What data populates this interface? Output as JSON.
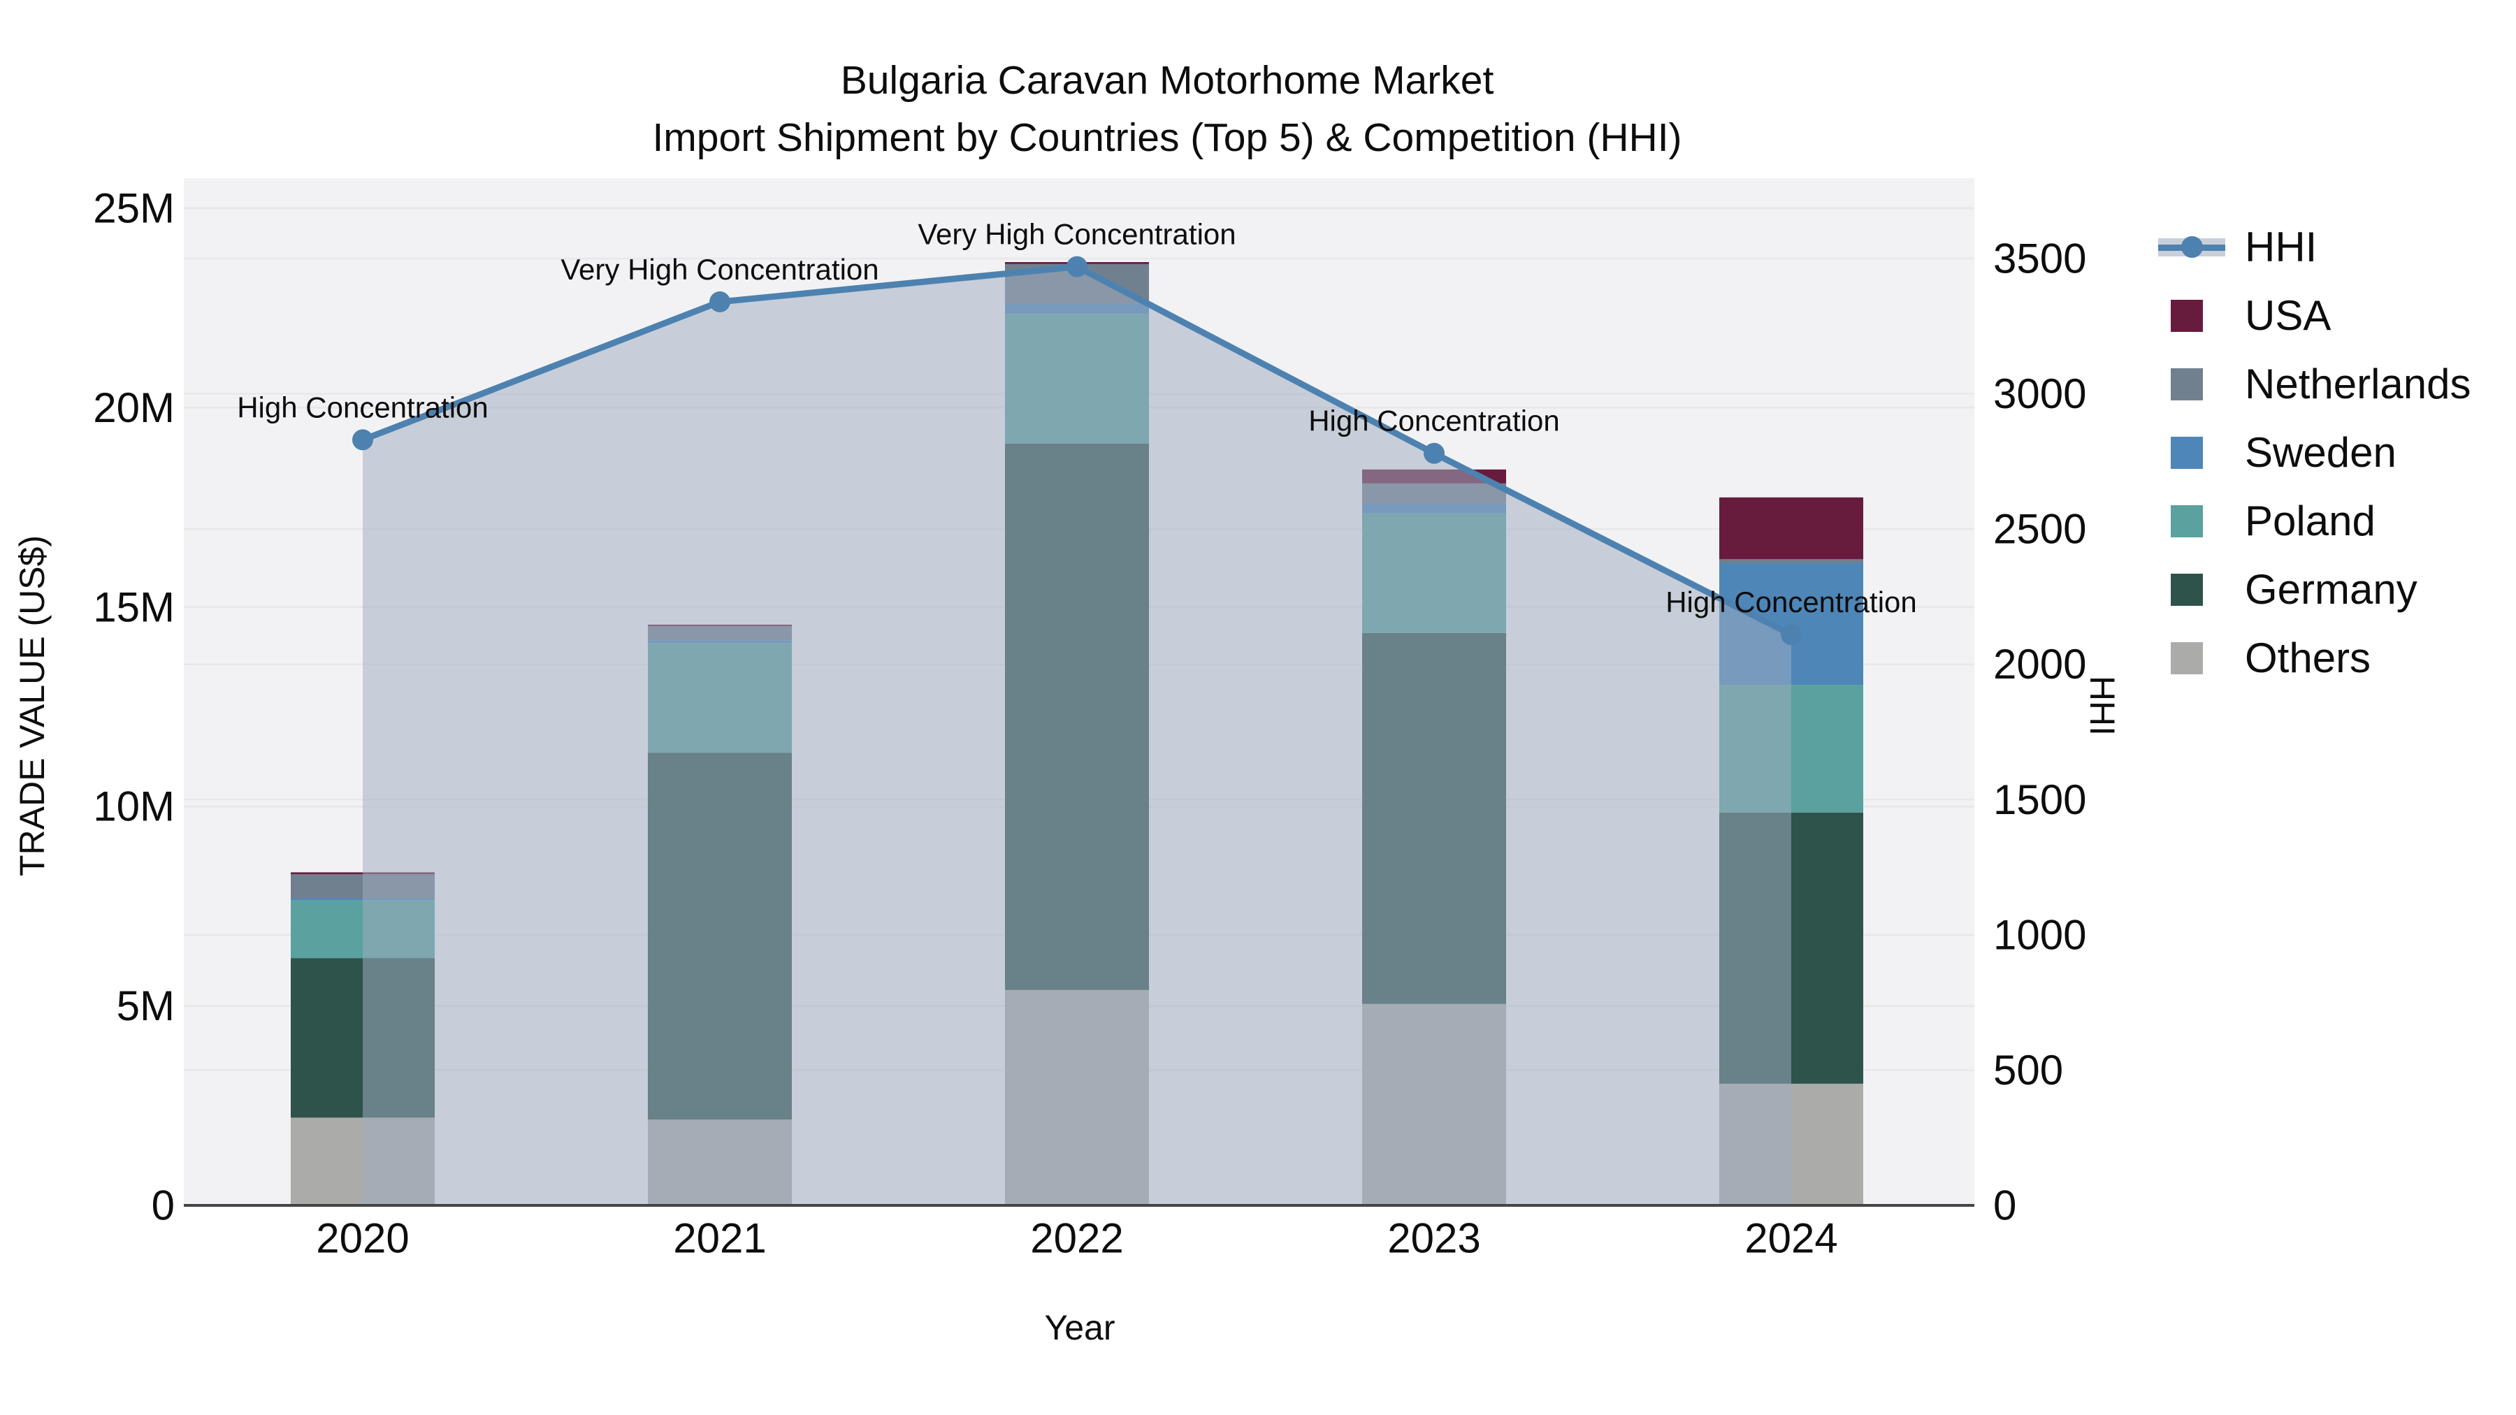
{
  "title": {
    "line1": "Bulgaria Caravan Motorhome Market",
    "line2": "Import Shipment by Countries (Top 5) & Competition (HHI)"
  },
  "axes": {
    "y_left": {
      "title": "TRADE VALUE (US$)",
      "ticks": [
        "0",
        "5M",
        "10M",
        "15M",
        "20M",
        "25M"
      ],
      "tick_values": [
        0,
        5,
        10,
        15,
        20,
        25
      ],
      "max": 25
    },
    "y_right": {
      "title": "HHI",
      "ticks": [
        "0",
        "500",
        "1000",
        "1500",
        "2000",
        "2500",
        "3000",
        "3500"
      ],
      "tick_values": [
        0,
        500,
        1000,
        1500,
        2000,
        2500,
        3000,
        3500
      ],
      "max": 3500
    },
    "x": {
      "title": "Year",
      "categories": [
        "2020",
        "2021",
        "2022",
        "2023",
        "2024"
      ]
    }
  },
  "legend": {
    "items": [
      {
        "label": "HHI",
        "type": "line",
        "color": "#4d82b0"
      },
      {
        "label": "USA",
        "type": "square",
        "color": "#681c3d"
      },
      {
        "label": "Netherlands",
        "type": "square",
        "color": "#71808f"
      },
      {
        "label": "Sweden",
        "type": "square",
        "color": "#4e86b8"
      },
      {
        "label": "Poland",
        "type": "square",
        "color": "#5aa19f"
      },
      {
        "label": "Germany",
        "type": "square",
        "color": "#2e534b"
      },
      {
        "label": "Others",
        "type": "square",
        "color": "#abacaa"
      }
    ]
  },
  "chart_data": {
    "type": "combo: stacked bar (left axis, trade value in millions US$) + line with area fill (right axis, HHI)",
    "categories": [
      "2020",
      "2021",
      "2022",
      "2023",
      "2024"
    ],
    "unit": "M US$",
    "stack_order_bottom_to_top": [
      "Others",
      "Germany",
      "Poland",
      "Sweden",
      "Netherlands",
      "USA"
    ],
    "series": [
      {
        "name": "Others",
        "color": "#abacaa",
        "values": [
          2.2,
          2.15,
          5.4,
          5.05,
          3.05
        ]
      },
      {
        "name": "Germany",
        "color": "#2e534b",
        "values": [
          4.0,
          9.2,
          13.7,
          9.3,
          6.8
        ]
      },
      {
        "name": "Poland",
        "color": "#5aa19f",
        "values": [
          1.45,
          2.75,
          3.25,
          3.0,
          3.2
        ]
      },
      {
        "name": "Sweden",
        "color": "#4e86b8",
        "values": [
          0.05,
          0.07,
          0.25,
          0.25,
          3.05
        ]
      },
      {
        "name": "Netherlands",
        "color": "#71808f",
        "values": [
          0.6,
          0.35,
          1.0,
          0.5,
          0.1
        ]
      },
      {
        "name": "USA",
        "color": "#681c3d",
        "values": [
          0.05,
          0.04,
          0.05,
          0.35,
          1.55
        ]
      }
    ],
    "bar_totals": [
      8.35,
      14.56,
      23.65,
      18.45,
      17.75
    ],
    "hhi": {
      "name": "HHI",
      "values": [
        2830,
        3340,
        3470,
        2780,
        2110
      ],
      "line_color": "#4d82b0",
      "area_fill": "rgba(160,172,192,0.52)"
    },
    "annotations": [
      {
        "year": "2020",
        "text": "High Concentration"
      },
      {
        "year": "2021",
        "text": "Very High Concentration"
      },
      {
        "year": "2022",
        "text": "Very High Concentration"
      },
      {
        "year": "2023",
        "text": "High Concentration"
      },
      {
        "year": "2024",
        "text": "High Concentration"
      }
    ],
    "ylim_left": [
      0,
      25
    ],
    "ylim_right": [
      0,
      3500
    ],
    "grid": true,
    "legend_position": "right"
  },
  "colors": {
    "plot_background": "#f2f2f4",
    "gridline": "#e8e8ea",
    "axis_line": "#444444",
    "text": "#0d0d0d"
  }
}
